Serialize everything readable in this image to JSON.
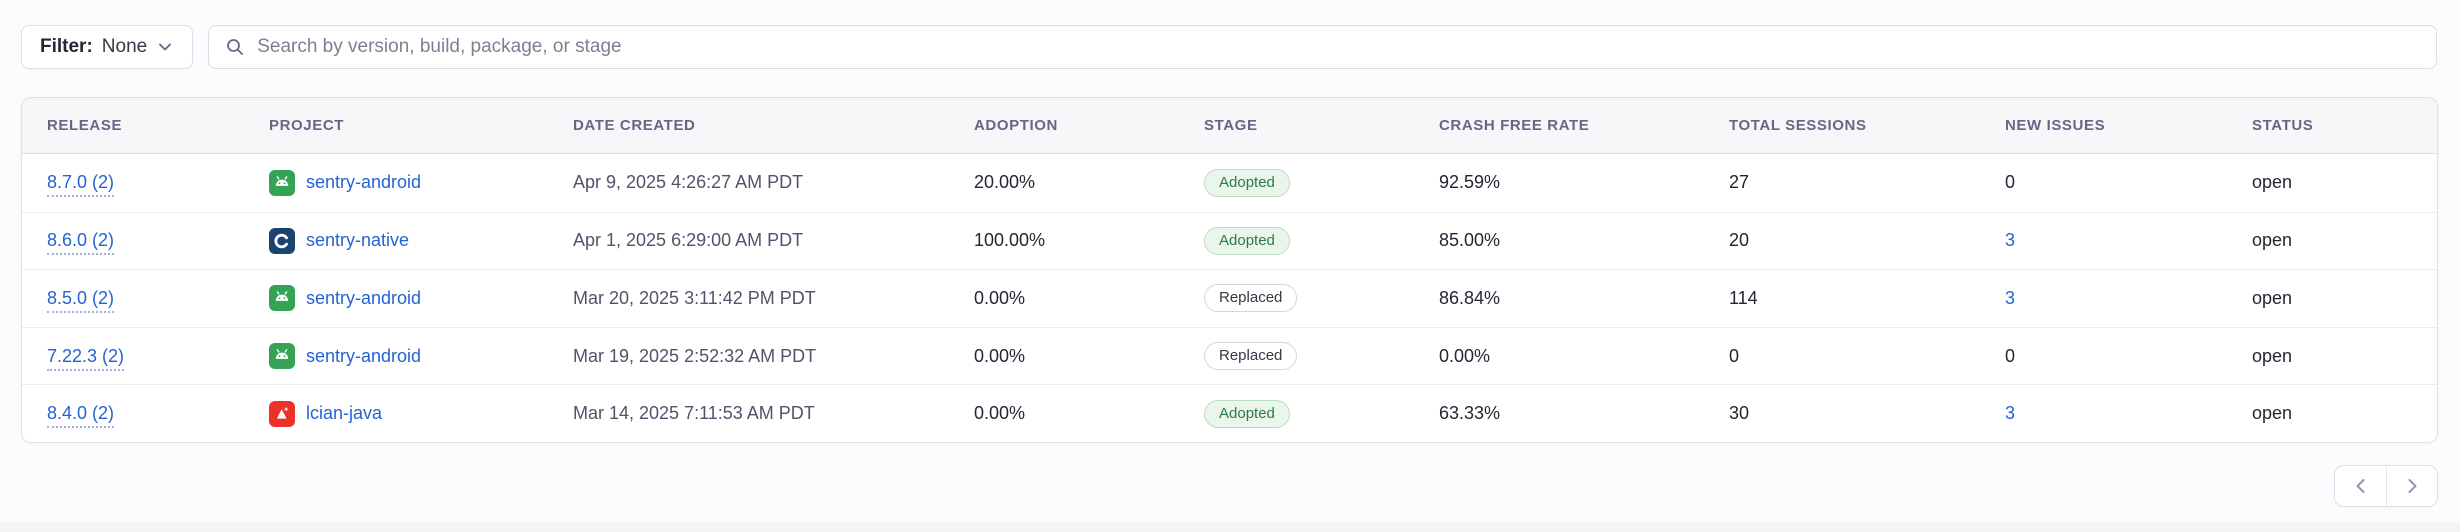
{
  "toolbar": {
    "filter_label": "Filter:",
    "filter_value": "None",
    "search_placeholder": "Search by version, build, package, or stage"
  },
  "table": {
    "columns": [
      "Release",
      "Project",
      "Date Created",
      "Adoption",
      "Stage",
      "Crash Free Rate",
      "Total Sessions",
      "New Issues",
      "Status"
    ],
    "rows": [
      {
        "release": "8.7.0 (2)",
        "project": "sentry-android",
        "platform": "android",
        "platform_icon": "android-icon",
        "date_created": "Apr 9, 2025 4:26:27 AM PDT",
        "adoption": "20.00%",
        "stage": "Adopted",
        "crash_free_rate": "92.59%",
        "total_sessions": "27",
        "new_issues": "0",
        "new_issues_is_link": false,
        "status": "open"
      },
      {
        "release": "8.6.0 (2)",
        "project": "sentry-native",
        "platform": "native-c",
        "platform_icon": "c-icon",
        "date_created": "Apr 1, 2025 6:29:00 AM PDT",
        "adoption": "100.00%",
        "stage": "Adopted",
        "crash_free_rate": "85.00%",
        "total_sessions": "20",
        "new_issues": "3",
        "new_issues_is_link": true,
        "status": "open"
      },
      {
        "release": "8.5.0 (2)",
        "project": "sentry-android",
        "platform": "android",
        "platform_icon": "android-icon",
        "date_created": "Mar 20, 2025 3:11:42 PM PDT",
        "adoption": "0.00%",
        "stage": "Replaced",
        "crash_free_rate": "86.84%",
        "total_sessions": "114",
        "new_issues": "3",
        "new_issues_is_link": true,
        "status": "open"
      },
      {
        "release": "7.22.3 (2)",
        "project": "sentry-android",
        "platform": "android",
        "platform_icon": "android-icon",
        "date_created": "Mar 19, 2025 2:52:32 AM PDT",
        "adoption": "0.00%",
        "stage": "Replaced",
        "crash_free_rate": "0.00%",
        "total_sessions": "0",
        "new_issues": "0",
        "new_issues_is_link": false,
        "status": "open"
      },
      {
        "release": "8.4.0 (2)",
        "project": "lcian-java",
        "platform": "java",
        "platform_icon": "java-icon",
        "date_created": "Mar 14, 2025 7:11:53 AM PDT",
        "adoption": "0.00%",
        "stage": "Adopted",
        "crash_free_rate": "63.33%",
        "total_sessions": "30",
        "new_issues": "3",
        "new_issues_is_link": true,
        "status": "open"
      }
    ]
  },
  "pagination": {
    "prev_icon": "chevron-left-icon",
    "next_icon": "chevron-right-icon"
  },
  "colors": {
    "link_blue": "#2562D4",
    "adopted_green": "#2B7A48",
    "android_green": "#34A353",
    "native_navy": "#1B4370",
    "java_red": "#EC3226",
    "header_text": "#6F6284",
    "body_text": "#2B2233"
  }
}
